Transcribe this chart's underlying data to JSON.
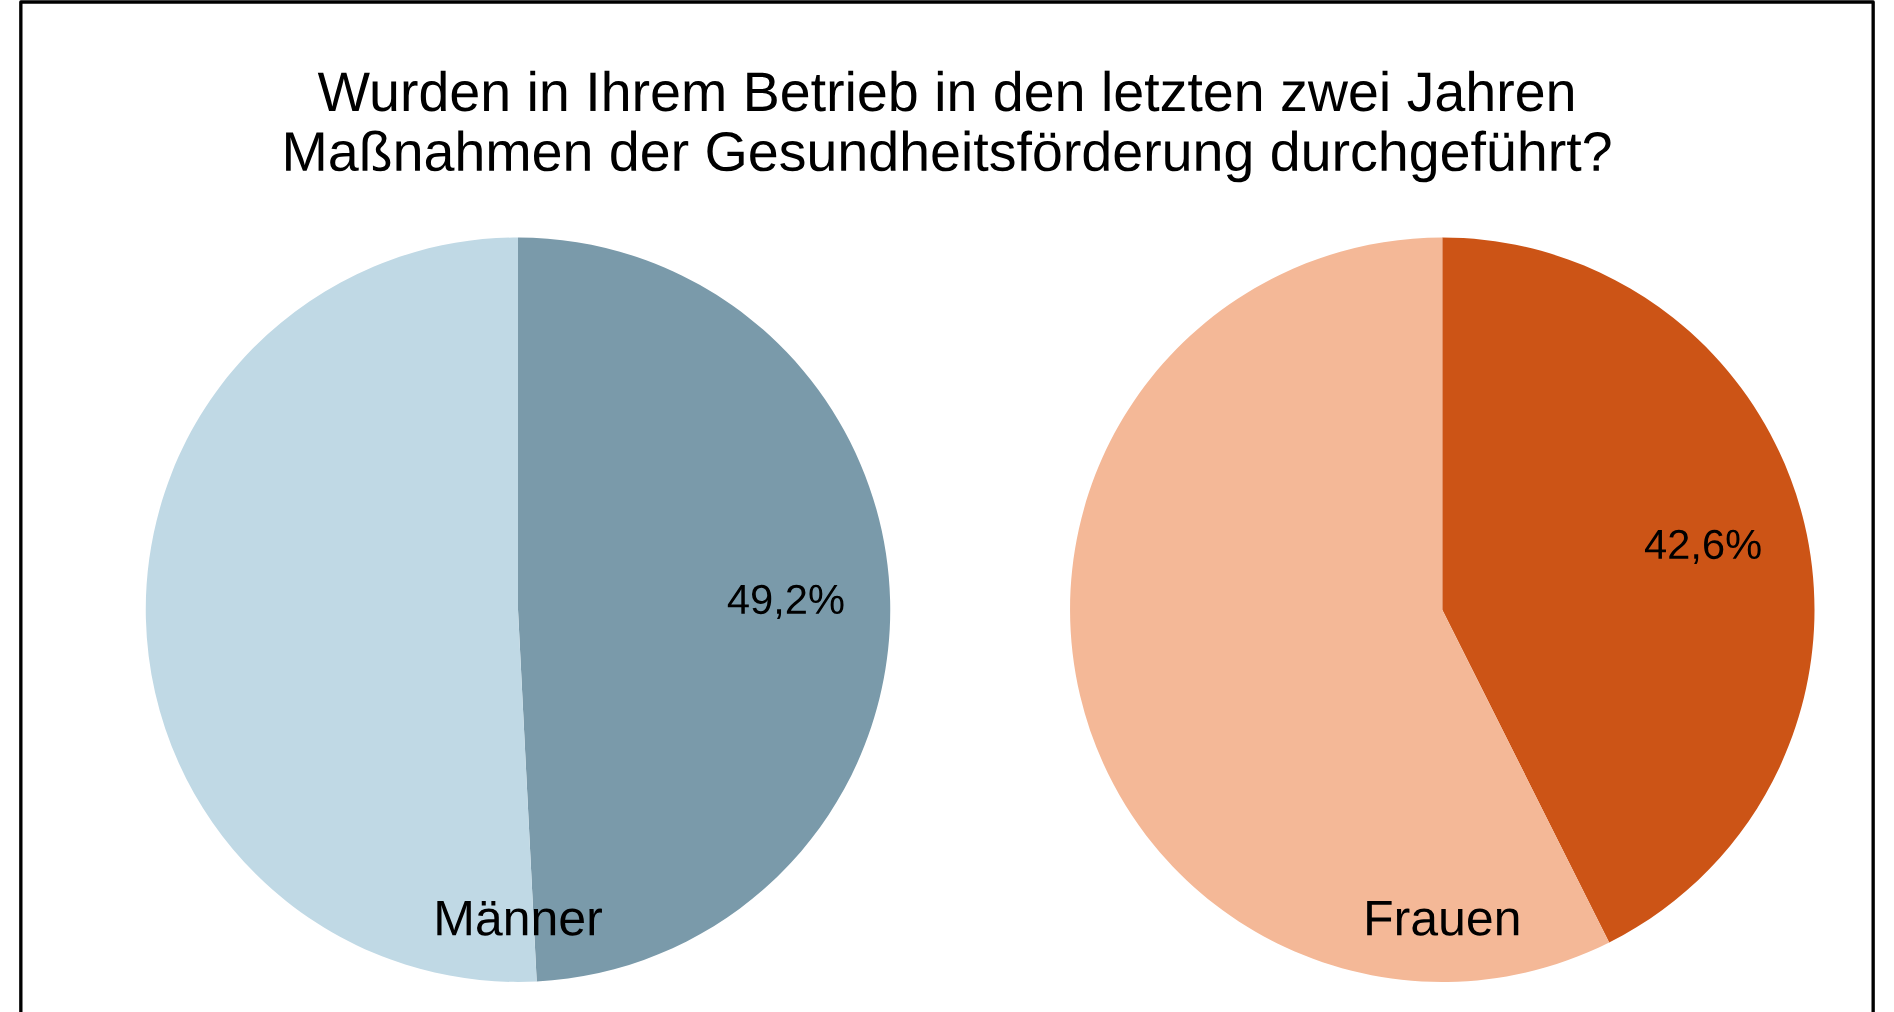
{
  "chart_data": [
    {
      "type": "pie",
      "title": "Wurden in Ihrem Betrieb in den letzten zwei Jahren Maßnahmen der Gesundheitsförderung durchgeführt?",
      "xlabel": "Männer",
      "categories": [
        null,
        null
      ],
      "values": [
        49.2,
        50.8
      ],
      "colors": [
        "#7a9aaa",
        "#c0d9e5"
      ],
      "value_labels": [
        "49,2%",
        null
      ]
    },
    {
      "type": "pie",
      "xlabel": "Frauen",
      "categories": [
        null,
        null
      ],
      "values": [
        42.6,
        57.4
      ],
      "colors": [
        "#cc5416",
        "#f4b897"
      ],
      "value_labels": [
        "42,6%",
        null
      ]
    }
  ]
}
